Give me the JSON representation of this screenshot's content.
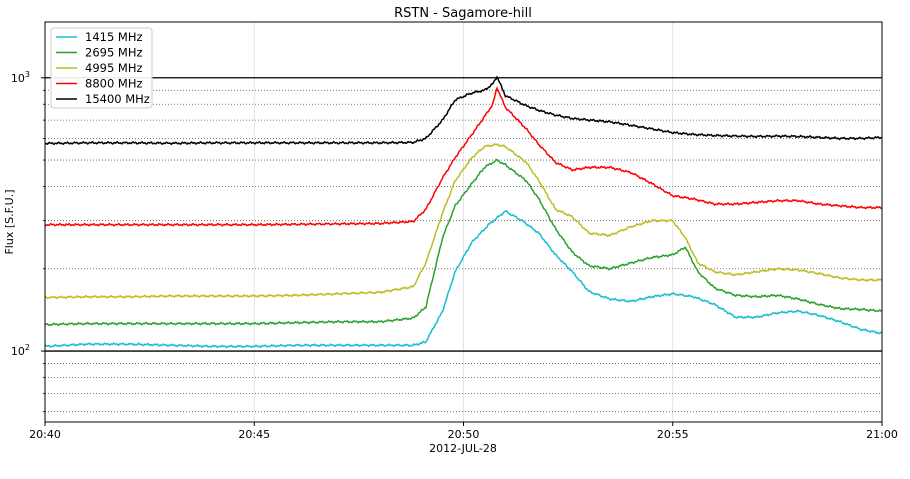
{
  "chart_data": {
    "type": "line",
    "title": "RSTN - Sagamore-hill",
    "xlabel": "2012-JUL-28",
    "ylabel": "Flux [S.F.U.]",
    "yscale": "log",
    "ylim": [
      55,
      1600
    ],
    "xlim_minutes": [
      0,
      20
    ],
    "x_ticks": [
      {
        "minute": 0,
        "label": "20:40"
      },
      {
        "minute": 5,
        "label": "20:45"
      },
      {
        "minute": 10,
        "label": "20:50"
      },
      {
        "minute": 15,
        "label": "20:55"
      },
      {
        "minute": 20,
        "label": "21:00"
      }
    ],
    "y_ticks": [
      {
        "value": 100,
        "label_base": "10",
        "label_exp": "2"
      },
      {
        "value": 1000,
        "label_base": "10",
        "label_exp": "3"
      }
    ],
    "legend_position": "top-left",
    "x_unit": "minutes after 20:40",
    "series": [
      {
        "name": "1415 MHz",
        "color": "#17becf",
        "x": [
          0,
          1,
          2,
          3,
          4,
          5,
          6,
          7,
          8,
          8.8,
          9.1,
          9.5,
          9.8,
          10.2,
          10.6,
          11.0,
          11.4,
          11.8,
          12.2,
          12.6,
          13.0,
          13.5,
          14.0,
          14.5,
          15.0,
          15.5,
          16.0,
          16.5,
          17.0,
          17.5,
          18.0,
          18.5,
          19.0,
          19.5,
          20.0
        ],
        "y": [
          104,
          106,
          106,
          105,
          104,
          104,
          105,
          105,
          105,
          105,
          108,
          140,
          195,
          250,
          290,
          325,
          300,
          270,
          225,
          195,
          165,
          155,
          152,
          158,
          162,
          158,
          148,
          133,
          133,
          138,
          140,
          135,
          128,
          120,
          116
        ]
      },
      {
        "name": "2695 MHz",
        "color": "#2ca02c",
        "x": [
          0,
          1,
          2,
          3,
          4,
          5,
          6,
          7,
          8,
          8.8,
          9.1,
          9.5,
          9.8,
          10.2,
          10.5,
          10.8,
          11.0,
          11.5,
          11.8,
          12.2,
          12.6,
          13.0,
          13.5,
          14.0,
          14.5,
          15.0,
          15.3,
          15.6,
          16.0,
          16.5,
          17.0,
          17.5,
          18.0,
          18.5,
          19.0,
          19.5,
          20.0
        ],
        "y": [
          125,
          126,
          126,
          126,
          126,
          126,
          127,
          128,
          128,
          132,
          145,
          260,
          340,
          410,
          470,
          500,
          480,
          420,
          360,
          280,
          230,
          205,
          200,
          210,
          220,
          225,
          240,
          195,
          170,
          160,
          158,
          160,
          155,
          148,
          143,
          142,
          140
        ]
      },
      {
        "name": "4995 MHz",
        "color": "#bcbd22",
        "x": [
          0,
          1,
          2,
          3,
          4,
          5,
          6,
          7,
          8,
          8.8,
          9.1,
          9.5,
          9.8,
          10.2,
          10.5,
          10.8,
          11.0,
          11.5,
          11.8,
          12.2,
          12.6,
          13.0,
          13.5,
          14.0,
          14.5,
          15.0,
          15.3,
          15.6,
          16.0,
          16.5,
          17.0,
          17.5,
          18.0,
          18.5,
          19.0,
          19.5,
          20.0
        ],
        "y": [
          157,
          158,
          158,
          159,
          159,
          159,
          160,
          162,
          164,
          172,
          210,
          320,
          420,
          510,
          560,
          570,
          560,
          490,
          420,
          330,
          310,
          270,
          265,
          285,
          300,
          300,
          260,
          210,
          195,
          190,
          195,
          200,
          198,
          192,
          185,
          182,
          182
        ]
      },
      {
        "name": "8800 MHz",
        "color": "#ff0000",
        "x": [
          0,
          1,
          2,
          3,
          4,
          5,
          6,
          7,
          8,
          8.8,
          9.1,
          9.5,
          9.8,
          10.2,
          10.5,
          10.7,
          10.8,
          11.0,
          11.5,
          11.8,
          12.2,
          12.6,
          13.0,
          13.5,
          14.0,
          14.5,
          15.0,
          15.5,
          16.0,
          16.5,
          17.0,
          17.5,
          18.0,
          18.5,
          19.0,
          19.5,
          20.0
        ],
        "y": [
          290,
          290,
          290,
          290,
          290,
          290,
          291,
          292,
          293,
          298,
          330,
          430,
          510,
          620,
          720,
          800,
          920,
          780,
          650,
          570,
          490,
          460,
          470,
          470,
          450,
          410,
          370,
          360,
          345,
          345,
          350,
          355,
          355,
          345,
          340,
          335,
          335
        ]
      },
      {
        "name": "15400 MHz",
        "color": "#000000",
        "x": [
          0,
          1,
          2,
          3,
          4,
          5,
          6,
          7,
          8,
          8.8,
          9.1,
          9.5,
          9.8,
          10.2,
          10.5,
          10.7,
          10.8,
          11.0,
          11.5,
          11.8,
          12.2,
          12.6,
          13.0,
          13.5,
          14.0,
          14.5,
          15.0,
          15.5,
          16.0,
          16.5,
          17.0,
          17.5,
          18.0,
          18.5,
          19.0,
          19.5,
          20.0
        ],
        "y": [
          575,
          578,
          578,
          576,
          578,
          578,
          578,
          578,
          578,
          580,
          600,
          700,
          830,
          880,
          900,
          950,
          1010,
          860,
          790,
          760,
          730,
          710,
          700,
          690,
          670,
          650,
          630,
          620,
          615,
          612,
          610,
          612,
          610,
          605,
          600,
          600,
          605
        ]
      }
    ]
  }
}
